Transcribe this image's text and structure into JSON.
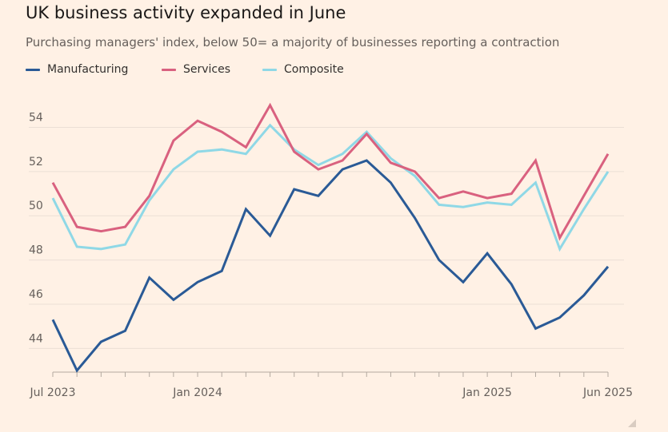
{
  "title": "UK business activity expanded in June",
  "subtitle": "Purchasing managers' index, below 50= a majority of businesses reporting a contraction",
  "legend": {
    "manufacturing": "Manufacturing",
    "services": "Services",
    "composite": "Composite"
  },
  "colors": {
    "manufacturing": "#2A5A96",
    "services": "#D9617F",
    "composite": "#8FD8E6",
    "grid": "#EBDFD5",
    "tick_text": "#66605C"
  },
  "chart_data": {
    "type": "line",
    "x": [
      "Jul 2023",
      "Aug 2023",
      "Sep 2023",
      "Oct 2023",
      "Nov 2023",
      "Dec 2023",
      "Jan 2024",
      "Feb 2024",
      "Mar 2024",
      "Apr 2024",
      "May 2024",
      "Jun 2024",
      "Jul 2024",
      "Aug 2024",
      "Sep 2024",
      "Oct 2024",
      "Nov 2024",
      "Dec 2024",
      "Jan 2025",
      "Feb 2025",
      "Mar 2025",
      "Apr 2025",
      "May 2025",
      "Jun 2025"
    ],
    "x_ticks": [
      {
        "label": "Jul 2023",
        "index": 0
      },
      {
        "label": "Jan 2024",
        "index": 6
      },
      {
        "label": "Jan 2025",
        "index": 18
      },
      {
        "label": "Jun 2025",
        "index": 23
      }
    ],
    "y_ticks": [
      44,
      46,
      48,
      50,
      52,
      54
    ],
    "ylim": [
      43,
      55.5
    ],
    "grid": true,
    "legend_position": "top-left",
    "series": [
      {
        "key": "manufacturing",
        "name": "Manufacturing",
        "values": [
          45.3,
          43.0,
          44.3,
          44.8,
          47.2,
          46.2,
          47.0,
          47.5,
          50.3,
          49.1,
          51.2,
          50.9,
          52.1,
          52.5,
          51.5,
          49.9,
          48.0,
          47.0,
          48.3,
          46.9,
          44.9,
          45.4,
          46.4,
          47.7
        ]
      },
      {
        "key": "services",
        "name": "Services",
        "values": [
          51.5,
          49.5,
          49.3,
          49.5,
          50.9,
          53.4,
          54.3,
          53.8,
          53.1,
          55.0,
          52.9,
          52.1,
          52.5,
          53.7,
          52.4,
          52.0,
          50.8,
          51.1,
          50.8,
          51.0,
          52.5,
          49.0,
          50.9,
          52.8
        ]
      },
      {
        "key": "composite",
        "name": "Composite",
        "values": [
          50.8,
          48.6,
          48.5,
          48.7,
          50.7,
          52.1,
          52.9,
          53.0,
          52.8,
          54.1,
          53.0,
          52.3,
          52.8,
          53.8,
          52.6,
          51.8,
          50.5,
          50.4,
          50.6,
          50.5,
          51.5,
          48.5,
          50.3,
          52.0
        ]
      }
    ]
  }
}
